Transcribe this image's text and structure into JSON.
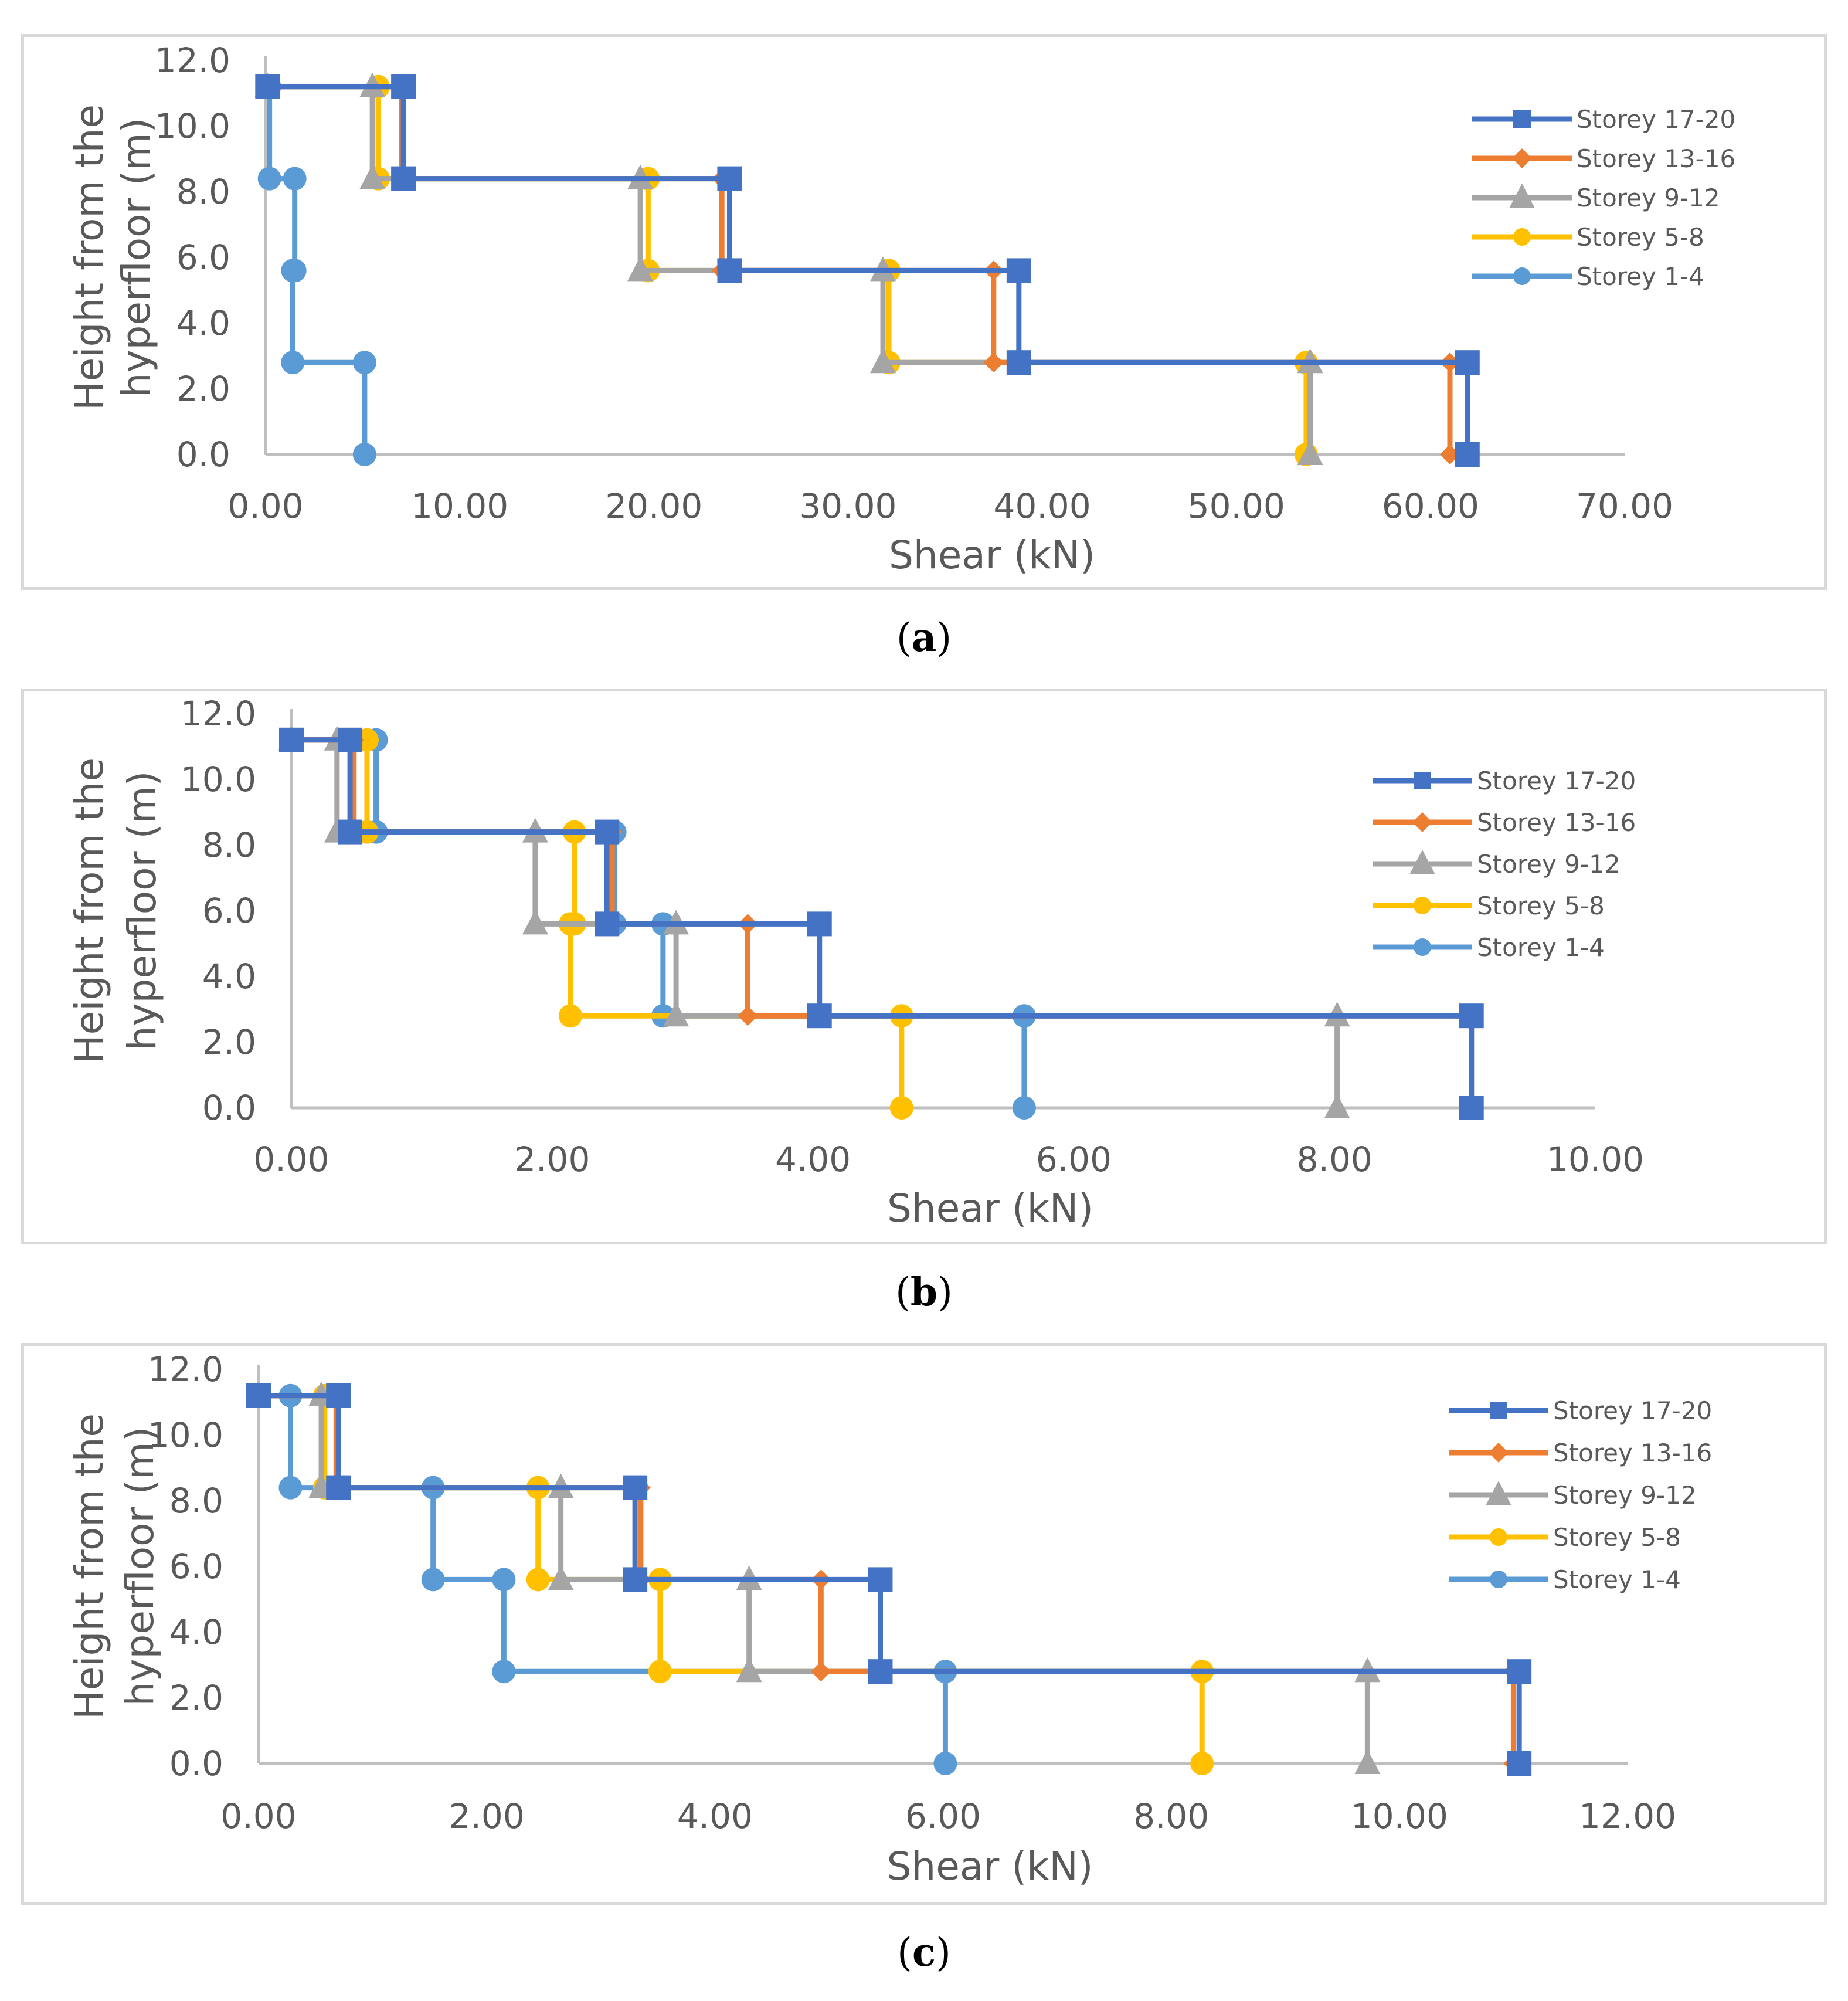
{
  "captions": [
    {
      "paren_open": "(",
      "letter": "a",
      "paren_close": ")"
    },
    {
      "paren_open": "(",
      "letter": "b",
      "paren_close": ")"
    },
    {
      "paren_open": "(",
      "letter": "c",
      "paren_close": ")"
    }
  ],
  "chart_data": [
    {
      "type": "line",
      "title": "",
      "xlabel": "Shear (kN)",
      "ylabel_lines": [
        "Height from the",
        "hyperfloor (m)"
      ],
      "xlim": [
        0,
        70
      ],
      "ylim": [
        0,
        12
      ],
      "xticks": [
        "0.00",
        "10.00",
        "20.00",
        "30.00",
        "40.00",
        "50.00",
        "60.00",
        "70.00"
      ],
      "yticks": [
        "0.0",
        "2.0",
        "4.0",
        "6.0",
        "8.0",
        "10.0",
        "12.0"
      ],
      "legend_position": "top-right",
      "series": [
        {
          "name": "Storey 17-20",
          "color": "#4472c4",
          "marker": "square",
          "x": [
            0.1,
            7.1,
            7.1,
            23.9,
            23.9,
            38.8,
            38.8,
            61.9,
            61.9
          ],
          "y": [
            11.2,
            11.2,
            8.4,
            8.4,
            5.6,
            5.6,
            2.8,
            2.8,
            0
          ]
        },
        {
          "name": "Storey 13-16",
          "color": "#ed7d31",
          "marker": "diamond",
          "x": [
            0.1,
            7.0,
            7.0,
            23.5,
            23.5,
            37.5,
            37.5,
            61.0,
            61.0
          ],
          "y": [
            11.2,
            11.2,
            8.4,
            8.4,
            5.6,
            5.6,
            2.8,
            2.8,
            0
          ]
        },
        {
          "name": "Storey 9-12",
          "color": "#a5a5a5",
          "marker": "triangle",
          "x": [
            0.1,
            5.5,
            5.5,
            19.3,
            19.3,
            31.8,
            31.8,
            53.8,
            53.8
          ],
          "y": [
            11.2,
            11.2,
            8.4,
            8.4,
            5.6,
            5.6,
            2.8,
            2.8,
            0
          ]
        },
        {
          "name": "Storey 5-8",
          "color": "#ffc000",
          "marker": "circle",
          "x": [
            0.1,
            5.8,
            5.8,
            19.7,
            19.7,
            32.1,
            32.1,
            53.6,
            53.6
          ],
          "y": [
            11.2,
            11.2,
            8.4,
            8.4,
            5.6,
            5.6,
            2.8,
            2.8,
            0
          ]
        },
        {
          "name": "Storey 1-4",
          "color": "#5b9bd5",
          "marker": "circle",
          "x": [
            0.1,
            0.2,
            0.2,
            1.5,
            1.5,
            1.4,
            1.4,
            5.1,
            5.1
          ],
          "y": [
            11.2,
            11.2,
            8.4,
            8.4,
            5.6,
            5.6,
            2.8,
            2.8,
            0
          ]
        }
      ]
    },
    {
      "type": "line",
      "title": "",
      "xlabel": "Shear (kN)",
      "ylabel_lines": [
        "Height from the",
        "hyperfloor (m)"
      ],
      "xlim": [
        0,
        10
      ],
      "ylim": [
        0,
        12
      ],
      "xticks": [
        "0.00",
        "2.00",
        "4.00",
        "6.00",
        "8.00",
        "10.00"
      ],
      "yticks": [
        "0.0",
        "2.0",
        "4.0",
        "6.0",
        "8.0",
        "10.0",
        "12.0"
      ],
      "legend_position": "top-right",
      "series": [
        {
          "name": "Storey 17-20",
          "color": "#4472c4",
          "marker": "square",
          "x": [
            0.0,
            0.45,
            0.45,
            2.42,
            2.42,
            4.05,
            4.05,
            9.05,
            9.05
          ],
          "y": [
            11.2,
            11.2,
            8.4,
            8.4,
            5.6,
            5.6,
            2.8,
            2.8,
            0
          ]
        },
        {
          "name": "Storey 13-16",
          "color": "#ed7d31",
          "marker": "diamond",
          "x": [
            0.0,
            0.48,
            0.48,
            2.46,
            2.46,
            3.5,
            3.5,
            9.05,
            9.05
          ],
          "y": [
            11.2,
            11.2,
            8.4,
            8.4,
            5.6,
            5.6,
            2.8,
            2.8,
            0
          ]
        },
        {
          "name": "Storey 9-12",
          "color": "#a5a5a5",
          "marker": "triangle",
          "x": [
            0.0,
            0.35,
            0.35,
            1.87,
            1.87,
            2.95,
            2.95,
            8.02,
            8.02
          ],
          "y": [
            11.2,
            11.2,
            8.4,
            8.4,
            5.6,
            5.6,
            2.8,
            2.8,
            0
          ]
        },
        {
          "name": "Storey 5-8",
          "color": "#ffc000",
          "marker": "circle",
          "x": [
            0.0,
            0.58,
            0.58,
            2.17,
            2.17,
            2.14,
            2.14,
            4.68,
            4.68
          ],
          "y": [
            11.2,
            11.2,
            8.4,
            8.4,
            5.6,
            5.6,
            2.8,
            2.8,
            0
          ]
        },
        {
          "name": "Storey 1-4",
          "color": "#5b9bd5",
          "marker": "circle",
          "x": [
            0.0,
            0.65,
            0.65,
            2.48,
            2.48,
            2.85,
            2.85,
            5.62,
            5.62
          ],
          "y": [
            11.2,
            11.2,
            8.4,
            8.4,
            5.6,
            5.6,
            2.8,
            2.8,
            0
          ]
        }
      ]
    },
    {
      "type": "line",
      "title": "",
      "xlabel": "Shear (kN)",
      "ylabel_lines": [
        "Height from the",
        "hyperfloor (m)"
      ],
      "xlim": [
        0,
        12
      ],
      "ylim": [
        0,
        12
      ],
      "xticks": [
        "0.00",
        "2.00",
        "4.00",
        "6.00",
        "8.00",
        "10.00",
        "12.00"
      ],
      "yticks": [
        "0.0",
        "2.0",
        "4.0",
        "6.0",
        "8.0",
        "10.0",
        "12.0"
      ],
      "legend_position": "top-right",
      "series": [
        {
          "name": "Storey 17-20",
          "color": "#4472c4",
          "marker": "square",
          "x": [
            0.0,
            0.7,
            0.7,
            3.3,
            3.3,
            5.45,
            5.45,
            11.05,
            11.05
          ],
          "y": [
            11.2,
            11.2,
            8.4,
            8.4,
            5.6,
            5.6,
            2.8,
            2.8,
            0
          ]
        },
        {
          "name": "Storey 13-16",
          "color": "#ed7d31",
          "marker": "diamond",
          "x": [
            0.0,
            0.68,
            0.68,
            3.35,
            3.35,
            4.93,
            4.93,
            11.0,
            11.0
          ],
          "y": [
            11.2,
            11.2,
            8.4,
            8.4,
            5.6,
            5.6,
            2.8,
            2.8,
            0
          ]
        },
        {
          "name": "Storey 9-12",
          "color": "#a5a5a5",
          "marker": "triangle",
          "x": [
            0.0,
            0.55,
            0.55,
            2.65,
            2.65,
            4.3,
            4.3,
            9.72,
            9.72
          ],
          "y": [
            11.2,
            11.2,
            8.4,
            8.4,
            5.6,
            5.6,
            2.8,
            2.8,
            0
          ]
        },
        {
          "name": "Storey 5-8",
          "color": "#ffc000",
          "marker": "circle",
          "x": [
            0.0,
            0.58,
            0.58,
            2.45,
            2.45,
            3.52,
            3.52,
            8.27,
            8.27
          ],
          "y": [
            11.2,
            11.2,
            8.4,
            8.4,
            5.6,
            5.6,
            2.8,
            2.8,
            0
          ]
        },
        {
          "name": "Storey 1-4",
          "color": "#5b9bd5",
          "marker": "circle",
          "x": [
            0.0,
            0.28,
            0.28,
            1.53,
            1.53,
            2.15,
            2.15,
            6.02,
            6.02
          ],
          "y": [
            11.2,
            11.2,
            8.4,
            8.4,
            5.6,
            5.6,
            2.8,
            2.8,
            0
          ]
        }
      ]
    }
  ]
}
